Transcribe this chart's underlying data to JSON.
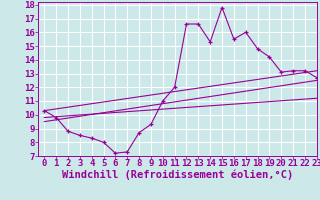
{
  "title": "",
  "xlabel": "Windchill (Refroidissement éolien,°C)",
  "ylabel": "",
  "bg_color": "#cce8e8",
  "grid_color": "#ffffff",
  "line_color": "#990099",
  "xlim": [
    -0.5,
    23
  ],
  "ylim": [
    7,
    18.2
  ],
  "xticks": [
    0,
    1,
    2,
    3,
    4,
    5,
    6,
    7,
    8,
    9,
    10,
    11,
    12,
    13,
    14,
    15,
    16,
    17,
    18,
    19,
    20,
    21,
    22,
    23
  ],
  "yticks": [
    7,
    8,
    9,
    10,
    11,
    12,
    13,
    14,
    15,
    16,
    17,
    18
  ],
  "series1_x": [
    0,
    1,
    2,
    3,
    4,
    5,
    6,
    7,
    8,
    9,
    10,
    11,
    12,
    13,
    14,
    15,
    16,
    17,
    18,
    19,
    20,
    21,
    22,
    23
  ],
  "series1_y": [
    10.3,
    9.8,
    8.8,
    8.5,
    8.3,
    8.0,
    7.2,
    7.3,
    8.7,
    9.3,
    11.0,
    12.0,
    16.6,
    16.6,
    15.3,
    17.8,
    15.5,
    16.0,
    14.8,
    14.2,
    13.1,
    13.2,
    13.2,
    12.7
  ],
  "series2_x": [
    0,
    23
  ],
  "series2_y": [
    10.3,
    13.2
  ],
  "series3_x": [
    0,
    23
  ],
  "series3_y": [
    9.5,
    12.5
  ],
  "series4_x": [
    0,
    23
  ],
  "series4_y": [
    9.8,
    11.2
  ],
  "font_family": "monospace",
  "tick_fontsize": 6.5,
  "xlabel_fontsize": 7.5
}
